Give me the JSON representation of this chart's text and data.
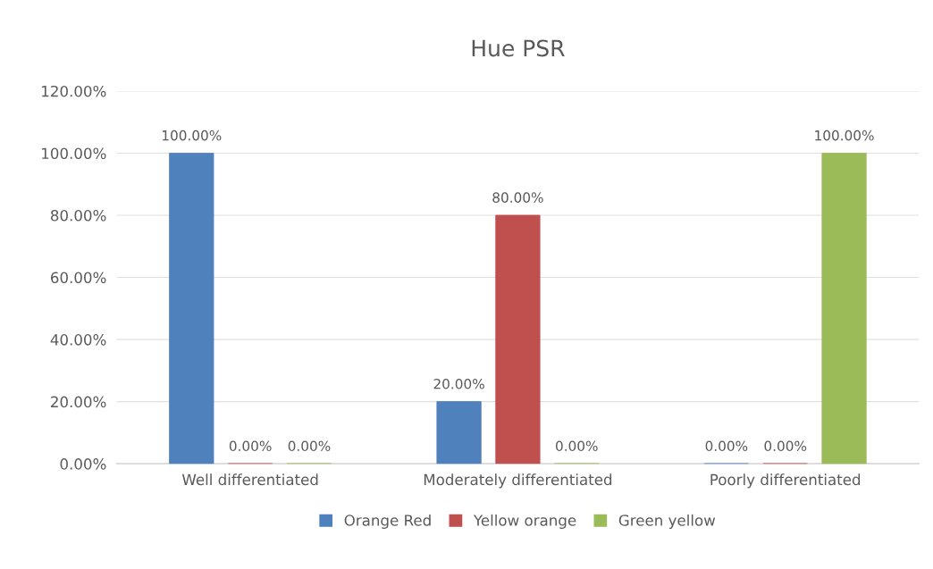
{
  "chart_data": {
    "type": "bar",
    "title": "Hue PSR",
    "categories": [
      "Well differentiated",
      "Moderately differentiated",
      "Poorly differentiated"
    ],
    "series": [
      {
        "name": "Orange Red",
        "color": "#4f81bd",
        "values": [
          100,
          20,
          0
        ],
        "value_labels": [
          "100.00%",
          "20.00%",
          "0.00%"
        ]
      },
      {
        "name": "Yellow orange",
        "color": "#c0504d",
        "values": [
          0,
          80,
          0
        ],
        "value_labels": [
          "0.00%",
          "80.00%",
          "0.00%"
        ]
      },
      {
        "name": "Green yellow",
        "color": "#9bbb59",
        "values": [
          0,
          0,
          100
        ],
        "value_labels": [
          "0.00%",
          "0.00%",
          "100.00%"
        ]
      }
    ],
    "ylim": [
      0,
      120
    ],
    "yticks": [
      {
        "value": 0,
        "label": "0.00%"
      },
      {
        "value": 20,
        "label": "20.00%"
      },
      {
        "value": 40,
        "label": "40.00%"
      },
      {
        "value": 60,
        "label": "60.00%"
      },
      {
        "value": 80,
        "label": "80.00%"
      },
      {
        "value": 100,
        "label": "100.00%"
      },
      {
        "value": 120,
        "label": "120.00%"
      }
    ],
    "grid": "y",
    "legend": "bottom"
  }
}
